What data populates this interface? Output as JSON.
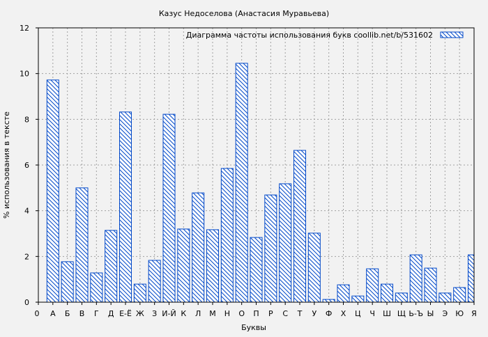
{
  "chart_data": {
    "type": "bar",
    "title": "Казус Недоселова (Анастасия Муравьева)",
    "xlabel": "Буквы",
    "ylabel": "% использования в тексте",
    "legend": {
      "label": "Диаграмма частоты использования букв  coollib.net/b/531602",
      "placement": "top-right"
    },
    "ylim": [
      0,
      12
    ],
    "yticks": [
      0,
      2,
      4,
      6,
      8,
      10,
      12
    ],
    "x_origin_label": "0",
    "grid": true,
    "colors": {
      "bar_stroke": "#0047c8",
      "bar_fill": "#ffffff",
      "grid": "#a0a0a0",
      "background": "#f2f2f2"
    },
    "categories": [
      "А",
      "Б",
      "В",
      "Г",
      "Д",
      "Е-Ё",
      "Ж",
      "З",
      "И-Й",
      "К",
      "Л",
      "М",
      "Н",
      "О",
      "П",
      "Р",
      "С",
      "Т",
      "У",
      "Ф",
      "Х",
      "Ц",
      "Ч",
      "Ш",
      "Щ",
      "Ь-Ъ",
      "Ы",
      "Э",
      "Ю",
      "Я"
    ],
    "values": [
      9.72,
      1.77,
      5.0,
      1.28,
      3.14,
      8.32,
      0.79,
      1.83,
      8.22,
      3.2,
      4.78,
      3.17,
      5.85,
      10.45,
      2.83,
      4.69,
      5.18,
      6.64,
      3.02,
      0.12,
      0.76,
      0.27,
      1.46,
      0.79,
      0.4,
      2.07,
      1.49,
      0.4,
      0.64,
      2.07
    ]
  }
}
